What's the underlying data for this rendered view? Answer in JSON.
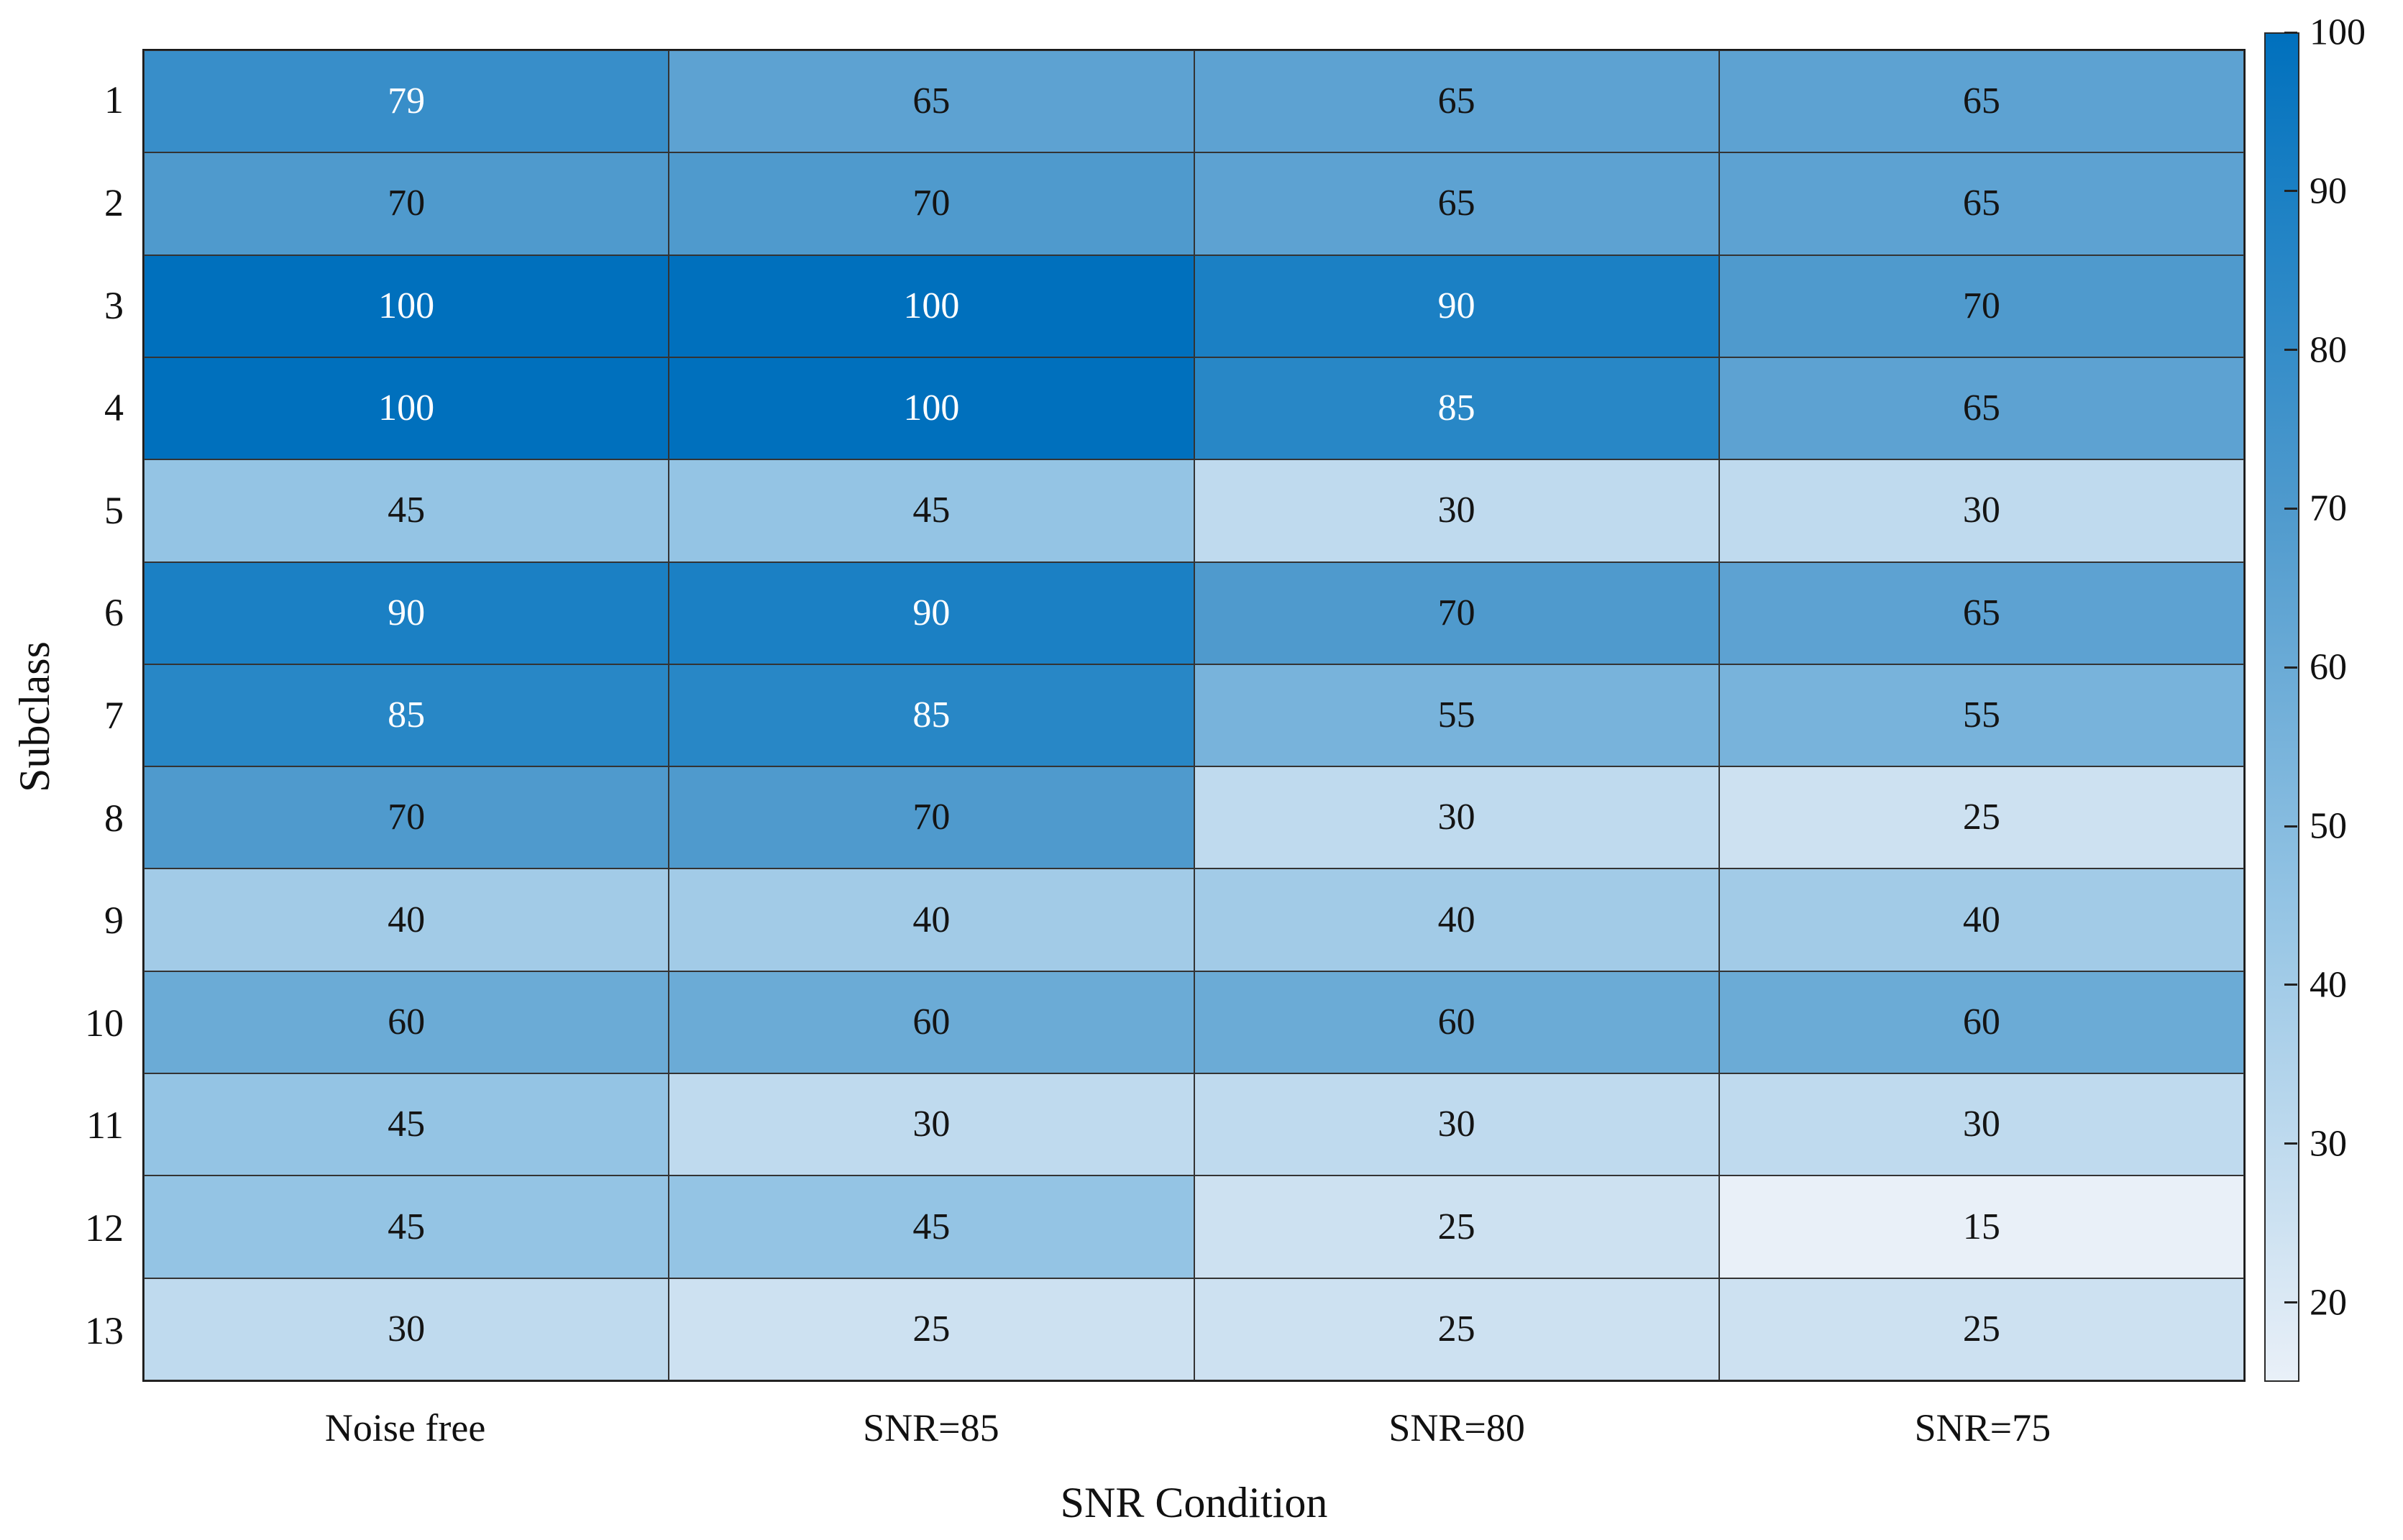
{
  "chart_data": {
    "type": "heatmap",
    "xlabel": "SNR Condition",
    "ylabel": "Subclass",
    "x_categories": [
      "Noise free",
      "SNR=85",
      "SNR=80",
      "SNR=75"
    ],
    "y_categories": [
      "1",
      "2",
      "3",
      "4",
      "5",
      "6",
      "7",
      "8",
      "9",
      "10",
      "11",
      "12",
      "13"
    ],
    "values": [
      [
        79,
        65,
        65,
        65
      ],
      [
        70,
        70,
        65,
        65
      ],
      [
        100,
        100,
        90,
        70
      ],
      [
        100,
        100,
        85,
        65
      ],
      [
        45,
        45,
        30,
        30
      ],
      [
        90,
        90,
        70,
        65
      ],
      [
        85,
        85,
        55,
        55
      ],
      [
        70,
        70,
        30,
        25
      ],
      [
        40,
        40,
        40,
        40
      ],
      [
        60,
        60,
        60,
        60
      ],
      [
        45,
        30,
        30,
        30
      ],
      [
        45,
        45,
        25,
        15
      ],
      [
        30,
        25,
        25,
        25
      ]
    ],
    "colorbar": {
      "min": 15,
      "max": 100,
      "ticks": [
        20,
        30,
        40,
        50,
        60,
        70,
        80,
        90,
        100
      ]
    },
    "colormap_stops": [
      {
        "value": 15,
        "color": "#e9f0f8"
      },
      {
        "value": 45,
        "color": "#94c4e4"
      },
      {
        "value": 70,
        "color": "#4f9acd"
      },
      {
        "value": 90,
        "color": "#1b80c4"
      },
      {
        "value": 100,
        "color": "#0070bd"
      }
    ],
    "text_colors": {
      "white_if_gte": 75,
      "light": "#ffffff",
      "dark": "#141414"
    },
    "grid_line_color": "#333333",
    "legend_position": "right-colorbar",
    "grid": "on"
  }
}
